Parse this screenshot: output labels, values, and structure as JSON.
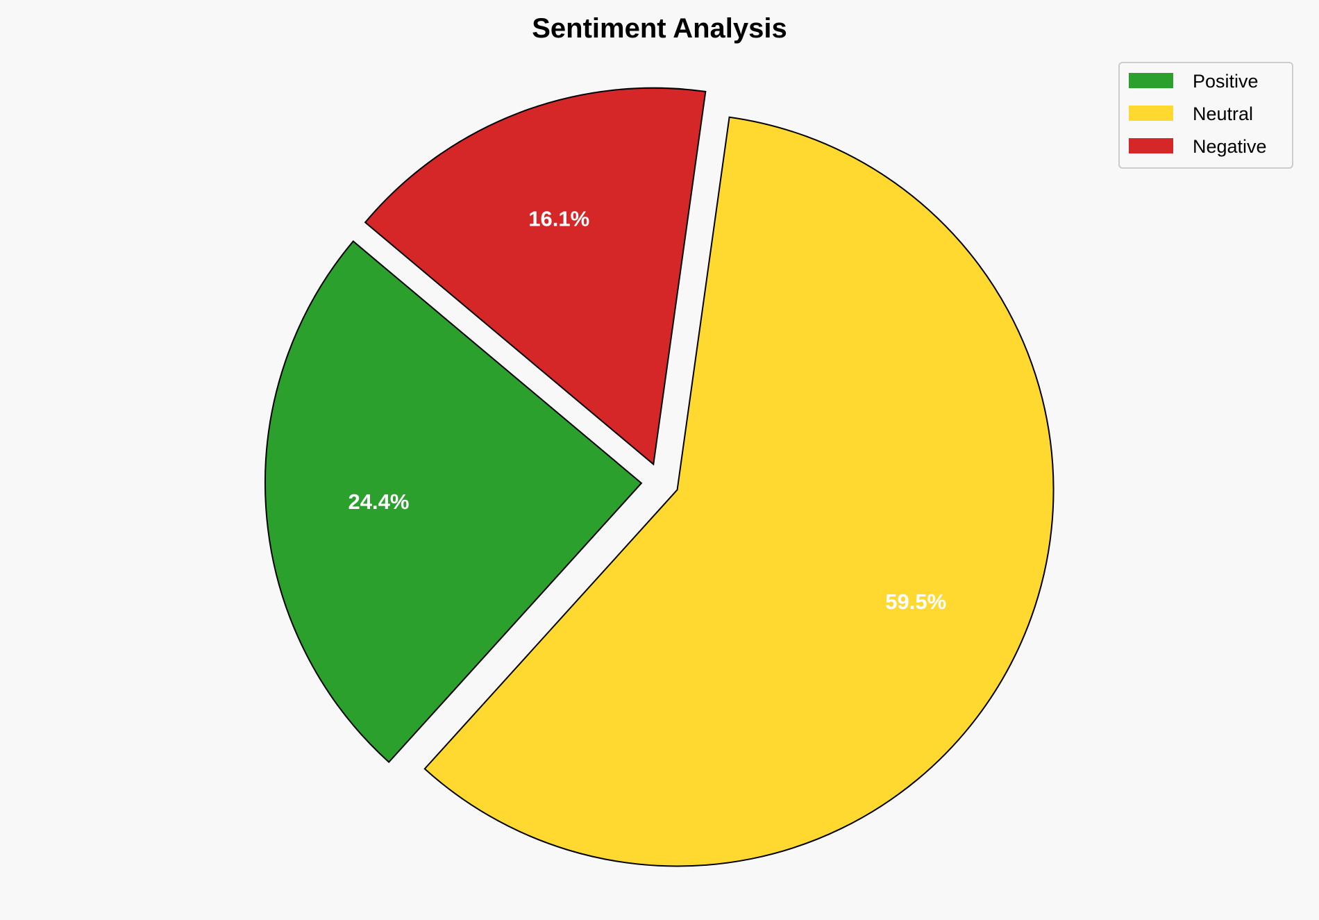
{
  "chart_data": {
    "type": "pie",
    "title": "Sentiment Analysis",
    "categories": [
      "Positive",
      "Neutral",
      "Negative"
    ],
    "values": [
      24.4,
      59.5,
      16.1
    ],
    "labels": [
      "24.4%",
      "59.5%",
      "16.1%"
    ],
    "colors": [
      "#2ca02c",
      "#ffd92f",
      "#d62728"
    ],
    "explode": [
      0.05,
      0.05,
      0.05
    ],
    "start_angle_deg": 140,
    "direction": "counterclockwise",
    "edge_color": "#000000",
    "legend": {
      "placement": "top-right",
      "entries": [
        "Positive",
        "Neutral",
        "Negative"
      ]
    },
    "background": "#f8f8f8"
  }
}
